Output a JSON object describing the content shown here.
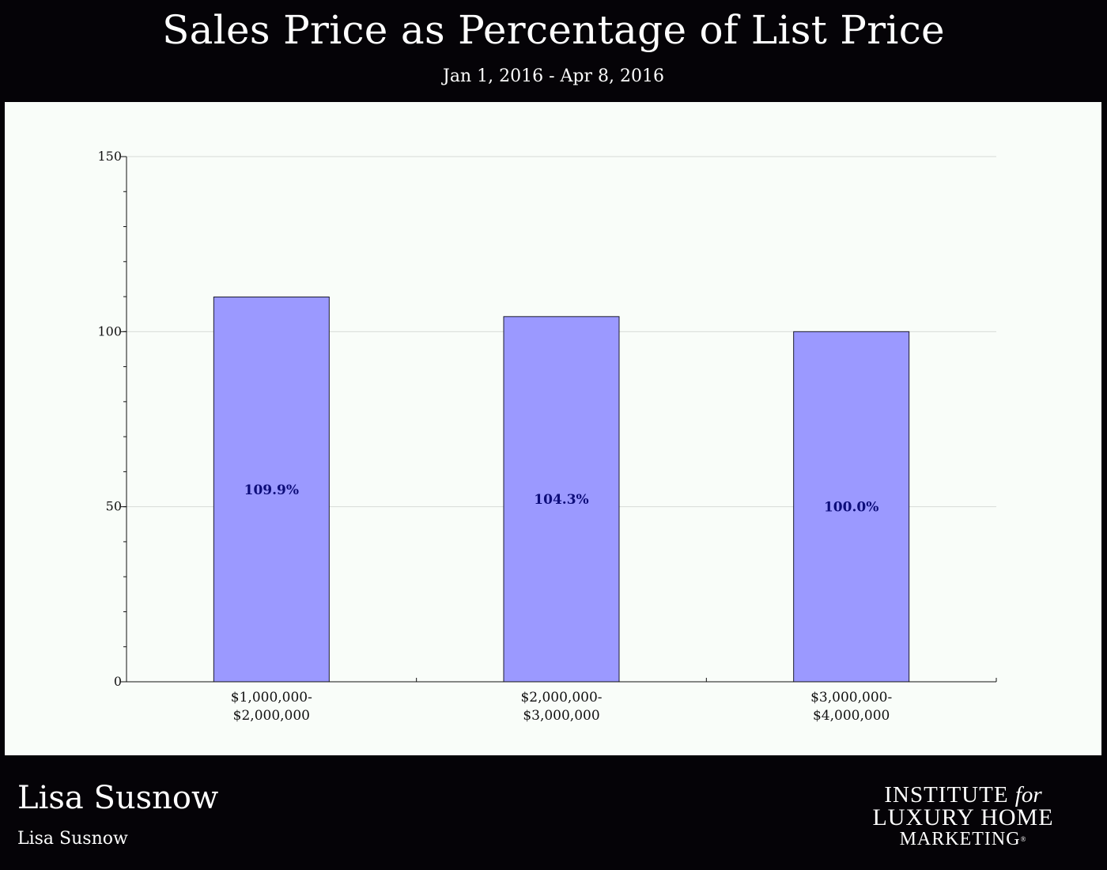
{
  "header": {
    "title": "Sales Price as Percentage of List Price",
    "subtitle": "Jan 1, 2016 - Apr 8, 2016"
  },
  "chart_data": {
    "type": "bar",
    "categories": [
      [
        "$1,000,000-",
        "$2,000,000"
      ],
      [
        "$2,000,000-",
        "$3,000,000"
      ],
      [
        "$3,000,000-",
        "$4,000,000"
      ]
    ],
    "values": [
      109.9,
      104.3,
      100.0
    ],
    "data_labels": [
      "109.9%",
      "104.3%",
      "100.0%"
    ],
    "ylim": [
      0,
      150
    ],
    "yticks": [
      0,
      50,
      100,
      150
    ],
    "y_minor_step": 10,
    "grid": true,
    "legend": "none",
    "colors": {
      "bar_fill": "#9b99ff",
      "bar_stroke": "#1a1a2e",
      "label": "#0d0d7a",
      "grid": "#d8dcd8",
      "axis": "#111111",
      "panel": "#f9fdf9"
    }
  },
  "footer": {
    "name": "Lisa Susnow",
    "subname": "Lisa Susnow",
    "logo": {
      "line1_main": "INSTITUTE",
      "line1_italic": "for",
      "line2": "LUXURY HOME",
      "line3": "MARKETING",
      "mark": "®"
    }
  }
}
